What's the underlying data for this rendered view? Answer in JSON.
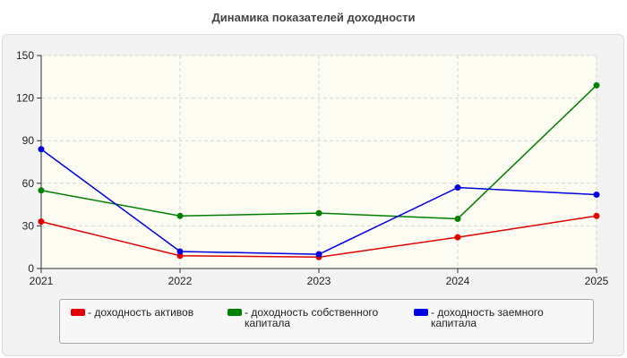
{
  "chart_data": {
    "type": "line",
    "title": "Динамика показателей доходности",
    "xlabel": "",
    "ylabel": "",
    "categories": [
      "2021",
      "2022",
      "2023",
      "2024",
      "2025"
    ],
    "ylim": [
      0,
      150
    ],
    "yticks": [
      0,
      30,
      60,
      90,
      120,
      150
    ],
    "grid": true,
    "legend_position": "bottom",
    "series": [
      {
        "name": "- доходность активов",
        "color": "#e00000",
        "values": [
          33,
          9,
          8,
          22,
          37
        ]
      },
      {
        "name": "- доходность собственного капитала",
        "color": "#008000",
        "values": [
          55,
          37,
          39,
          35,
          129
        ]
      },
      {
        "name": "- доходность заемного капитала",
        "color": "#0000e0",
        "values": [
          84,
          12,
          10,
          57,
          52
        ]
      }
    ]
  }
}
